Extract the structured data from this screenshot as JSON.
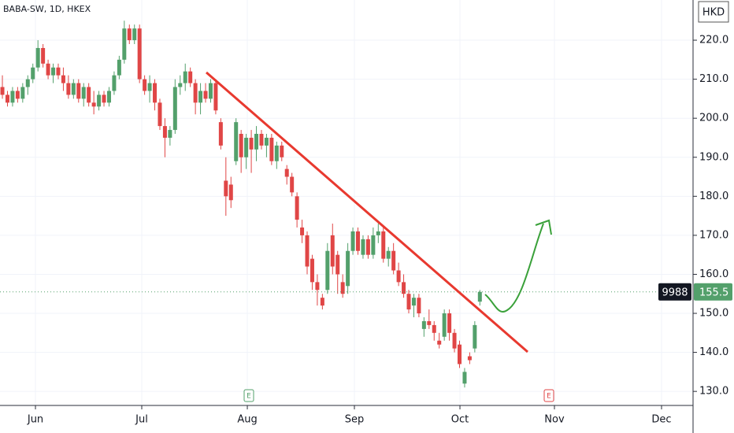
{
  "chart_data": {
    "type": "candlestick",
    "title": "BABA-SW, 1D, HKEX",
    "currency": "HKD",
    "symbol_tag": "9988",
    "last_price": 155.5,
    "last_price_label": "155.5",
    "annotations": [
      "E",
      "E"
    ],
    "up_color": "#53a06b",
    "down_color": "#e04646",
    "grid": true,
    "xlim": [
      -0.47,
      135.97
    ],
    "xticks": [
      {
        "value": 6.51,
        "label": "Jun"
      },
      {
        "value": 27.44,
        "label": "Jul"
      },
      {
        "value": 48.22,
        "label": "Aug"
      },
      {
        "value": 69.3,
        "label": "Sep"
      },
      {
        "value": 90.08,
        "label": "Oct"
      },
      {
        "value": 108.68,
        "label": "Nov"
      },
      {
        "value": 129.77,
        "label": "Dec"
      }
    ],
    "ylim": [
      126.4,
      230.3
    ],
    "yticks": [
      {
        "value": 130,
        "label": "130.0"
      },
      {
        "value": 140,
        "label": "140.0"
      },
      {
        "value": 150,
        "label": "150.0"
      },
      {
        "value": 160,
        "label": "160.0"
      },
      {
        "value": 170,
        "label": "170.0"
      },
      {
        "value": 180,
        "label": "180.0"
      },
      {
        "value": 190,
        "label": "190.0"
      },
      {
        "value": 200,
        "label": "200.0"
      },
      {
        "value": 210,
        "label": "210.0"
      },
      {
        "value": 220,
        "label": "220.0"
      }
    ],
    "open": [
      208,
      206,
      204,
      207,
      205,
      208,
      210,
      213,
      218,
      214,
      211,
      213,
      211,
      209,
      206,
      209,
      205,
      208,
      204,
      203,
      206,
      204,
      207,
      211,
      215,
      223,
      220,
      223,
      210,
      207,
      209,
      204,
      198,
      195,
      197,
      208,
      209,
      212,
      209,
      204,
      207,
      205,
      209,
      199,
      184,
      183,
      189,
      196,
      190,
      195,
      192,
      196,
      193,
      195,
      189,
      193,
      187,
      185,
      180,
      172,
      170,
      164,
      158,
      154,
      156,
      170,
      165,
      158,
      157,
      166,
      171,
      165,
      169,
      165,
      170,
      171,
      164,
      166,
      161,
      158,
      155,
      152,
      154,
      146,
      148,
      147,
      143,
      144,
      150,
      145,
      142,
      132,
      139,
      141,
      153
    ],
    "high": [
      211,
      207,
      208,
      208,
      209,
      211,
      214,
      220,
      219,
      215,
      214,
      214,
      213,
      211,
      210,
      210,
      209,
      209,
      207,
      207,
      207,
      208,
      212,
      216,
      225,
      224,
      224,
      224,
      211,
      211,
      210,
      205,
      200,
      198,
      210,
      211,
      214,
      213,
      210,
      209,
      209,
      210,
      210,
      200,
      190,
      185,
      200,
      197,
      196,
      197,
      198,
      197,
      196,
      196,
      194,
      194,
      188,
      186,
      181,
      174,
      171,
      165,
      160,
      155,
      168,
      173,
      166,
      160,
      168,
      172,
      172,
      170,
      170,
      172,
      173,
      172,
      167,
      168,
      163,
      160,
      156,
      155,
      155,
      149,
      151,
      148,
      145,
      151,
      151,
      146,
      143,
      136,
      140,
      148,
      156
    ],
    "low": [
      205,
      203,
      203,
      204,
      204,
      206,
      209,
      212,
      213,
      210,
      209,
      210,
      207,
      205,
      205,
      204,
      203,
      203,
      201,
      202,
      203,
      203,
      206,
      210,
      214,
      219,
      219,
      209,
      206,
      204,
      202,
      197,
      190,
      193,
      196,
      206,
      207,
      208,
      201,
      201,
      204,
      204,
      201,
      192,
      175,
      177,
      188,
      186,
      187,
      186,
      189,
      192,
      190,
      188,
      187,
      189,
      183,
      180,
      172,
      168,
      160,
      156,
      152,
      151,
      155,
      160,
      155,
      154,
      155,
      165,
      165,
      164,
      164,
      164,
      168,
      163,
      162,
      160,
      157,
      154,
      150,
      149,
      149,
      144,
      146,
      143,
      141,
      143,
      143,
      140,
      136,
      131,
      137,
      140,
      152
    ],
    "close": [
      206,
      204,
      207,
      205,
      208,
      210,
      213,
      218,
      214,
      211,
      213,
      211,
      209,
      206,
      209,
      205,
      208,
      204,
      203,
      206,
      204,
      207,
      211,
      215,
      223,
      220,
      223,
      210,
      207,
      209,
      204,
      198,
      195,
      197,
      208,
      209,
      212,
      209,
      204,
      207,
      205,
      209,
      202,
      193,
      180,
      179,
      199,
      190,
      195,
      192,
      196,
      193,
      195,
      189,
      193,
      190,
      185,
      181,
      174,
      170,
      162,
      158,
      156,
      152,
      166,
      162,
      160,
      155,
      166,
      171,
      166,
      169,
      165,
      170,
      171,
      164,
      166,
      161,
      158,
      155,
      151,
      154,
      150,
      148,
      147,
      145,
      142,
      150,
      145,
      141,
      137,
      135,
      138,
      147,
      155.5
    ]
  }
}
